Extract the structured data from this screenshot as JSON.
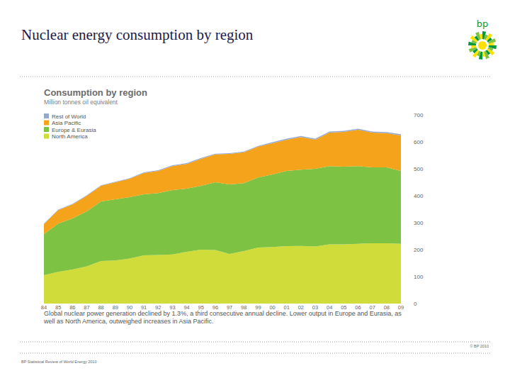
{
  "slide": {
    "title": "Nuclear energy consumption by region",
    "logo": "bp",
    "copyright": "© BP 2010",
    "source": "BP Statistical Review of World Energy 2010"
  },
  "chart_data": {
    "type": "area",
    "stacked": true,
    "title": "Consumption by region",
    "subtitle": "Million tonnes oil equivalent",
    "annotations": [
      "Global nuclear power generation declined by 1.3%, a third consecutive annual decline. Lower output in Europe and Eurasia, as well as North America, outweighed increases in Asia Pacific."
    ],
    "categories": [
      "84",
      "85",
      "86",
      "87",
      "88",
      "89",
      "90",
      "91",
      "92",
      "93",
      "94",
      "95",
      "96",
      "97",
      "98",
      "99",
      "00",
      "01",
      "02",
      "03",
      "04",
      "05",
      "06",
      "07",
      "08",
      "09"
    ],
    "series": [
      {
        "name": "North America",
        "color": "#cfdc3a",
        "values": [
          105,
          118,
          126,
          138,
          158,
          160,
          167,
          179,
          180,
          182,
          192,
          200,
          199,
          184,
          195,
          208,
          210,
          213,
          214,
          212,
          220,
          220,
          222,
          224,
          224,
          222
        ]
      },
      {
        "name": "Europe & Eurasia",
        "color": "#7dc242",
        "values": [
          153,
          179,
          190,
          204,
          221,
          227,
          228,
          226,
          230,
          239,
          234,
          237,
          251,
          258,
          252,
          260,
          269,
          279,
          283,
          288,
          290,
          288,
          288,
          281,
          281,
          270
        ]
      },
      {
        "name": "Asia Pacific",
        "color": "#f5a31a",
        "values": [
          37,
          50,
          52,
          58,
          58,
          63,
          68,
          79,
          82,
          89,
          92,
          100,
          103,
          113,
          114,
          114,
          116,
          116,
          121,
          108,
          124,
          129,
          135,
          129,
          127,
          132
        ]
      },
      {
        "name": "Rest of World",
        "color": "#95a9cc",
        "values": [
          2,
          2,
          2,
          2,
          2,
          2,
          2,
          3,
          3,
          3,
          3,
          3,
          3,
          3,
          3,
          3,
          4,
          4,
          4,
          4,
          4,
          4,
          4,
          4,
          4,
          4
        ]
      }
    ],
    "ylim": [
      0,
      700
    ],
    "yticks": [
      0,
      100,
      200,
      300,
      400,
      500,
      600,
      700
    ],
    "grid": false,
    "legend": "top-left"
  }
}
